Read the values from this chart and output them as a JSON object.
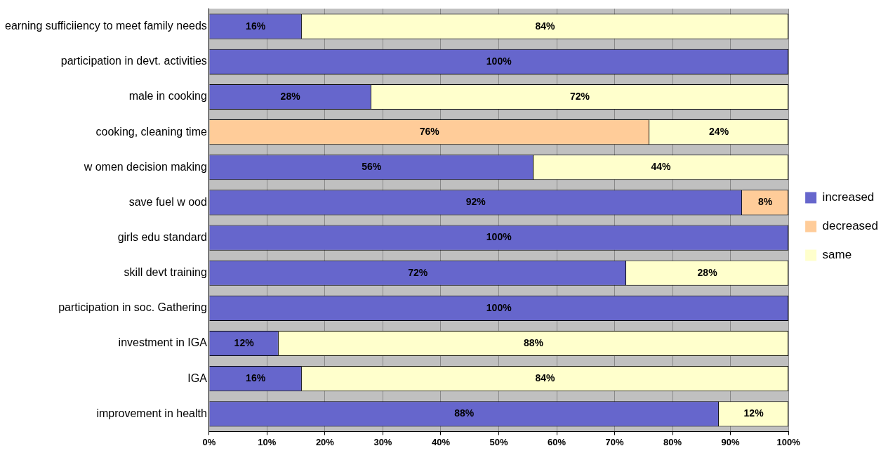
{
  "chart_data": {
    "type": "bar",
    "orientation": "horizontal",
    "stacked": true,
    "categories": [
      "earning sufficiiency to meet family needs",
      "participation in devt. activities",
      "male in cooking",
      "cooking, cleaning time",
      "w omen decision making",
      "save fuel w ood",
      "girls edu standard",
      "skill devt training",
      "participation in soc. Gathering",
      "investment in IGA",
      "IGA",
      "improvement in health"
    ],
    "series": [
      {
        "name": "increased",
        "color": "#6666cc",
        "values": [
          16,
          100,
          28,
          0,
          56,
          92,
          100,
          72,
          100,
          12,
          16,
          88
        ],
        "value_labels": [
          "16%",
          "100%",
          "28%",
          null,
          "56%",
          "92%",
          "100%",
          "72%",
          "100%",
          "12%",
          "16%",
          "88%"
        ]
      },
      {
        "name": "decreased",
        "color": "#ffcc99",
        "values": [
          0,
          0,
          0,
          76,
          0,
          8,
          0,
          0,
          0,
          0,
          0,
          0
        ],
        "value_labels": [
          null,
          null,
          null,
          "76%",
          null,
          "8%",
          null,
          null,
          null,
          null,
          null,
          null
        ]
      },
      {
        "name": "same",
        "color": "#ffffcc",
        "values": [
          84,
          0,
          72,
          24,
          44,
          0,
          0,
          28,
          0,
          88,
          84,
          12
        ],
        "value_labels": [
          "84%",
          null,
          "72%",
          "24%",
          "44%",
          null,
          null,
          "28%",
          null,
          "88%",
          "84%",
          "12%"
        ]
      }
    ],
    "xlim": [
      0,
      100
    ],
    "xticks": [
      {
        "value": 0,
        "label": "0%"
      },
      {
        "value": 10,
        "label": "10%"
      },
      {
        "value": 20,
        "label": "20%"
      },
      {
        "value": 30,
        "label": "30%"
      },
      {
        "value": 40,
        "label": "40%"
      },
      {
        "value": 50,
        "label": "50%"
      },
      {
        "value": 60,
        "label": "60%"
      },
      {
        "value": 70,
        "label": "70%"
      },
      {
        "value": 80,
        "label": "80%"
      },
      {
        "value": 90,
        "label": "90%"
      },
      {
        "value": 100,
        "label": "100%"
      }
    ],
    "grid": "x",
    "legend": "right"
  }
}
